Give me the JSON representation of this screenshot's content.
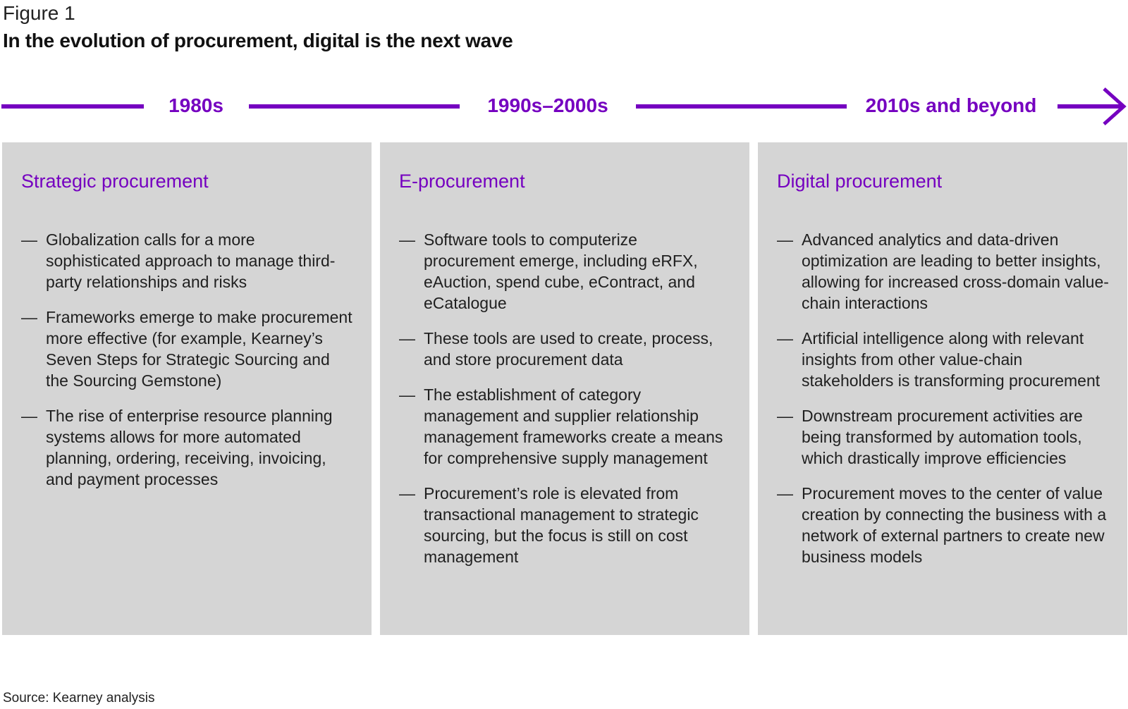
{
  "figure_label": "Figure 1",
  "title": "In the evolution of procurement, digital is the next wave",
  "colors": {
    "accent": "#7500c0",
    "panel_background": "#d5d5d5",
    "text": "#1f1f1f"
  },
  "timeline": {
    "eras": [
      {
        "label": "1980s"
      },
      {
        "label": "1990s–2000s"
      },
      {
        "label": "2010s and beyond"
      }
    ],
    "arrow_icon": "right-arrow-icon"
  },
  "panels": [
    {
      "heading": "Strategic procurement",
      "bullets": [
        "Globalization calls for a more sophisticated approach to manage third-party relationships and risks",
        "Frameworks emerge to make procurement more effective (for example, Kearney’s Seven Steps for Strategic Sourcing and the Sourcing Gemstone)",
        "The rise of enterprise resource planning systems allows for more automated planning, ordering, receiving, invoicing, and payment processes"
      ]
    },
    {
      "heading": "E-procurement",
      "bullets": [
        "Software tools to computerize procurement emerge, including eRFX, eAuction, spend cube, eContract, and eCatalogue",
        "These tools are used to create, process, and store procurement data",
        "The establishment of category management and supplier relationship management frameworks create a means for comprehensive supply management",
        "Procurement’s role is elevated from transactional management to strategic sourcing, but the focus is still on cost management"
      ]
    },
    {
      "heading": "Digital procurement",
      "bullets": [
        "Advanced analytics and data-driven optimization are leading to better insights, allowing for increased cross-domain value-chain interactions",
        "Artificial intelligence along with relevant insights from other value-chain stakeholders is transforming procurement",
        "Downstream procurement activities are being transformed by automation tools, which drastically improve efficiencies",
        "Procurement moves to the center of value creation by connecting the business with a network of external partners to create new business models"
      ]
    }
  ],
  "bullet_marker": "—",
  "source": "Source: Kearney analysis"
}
